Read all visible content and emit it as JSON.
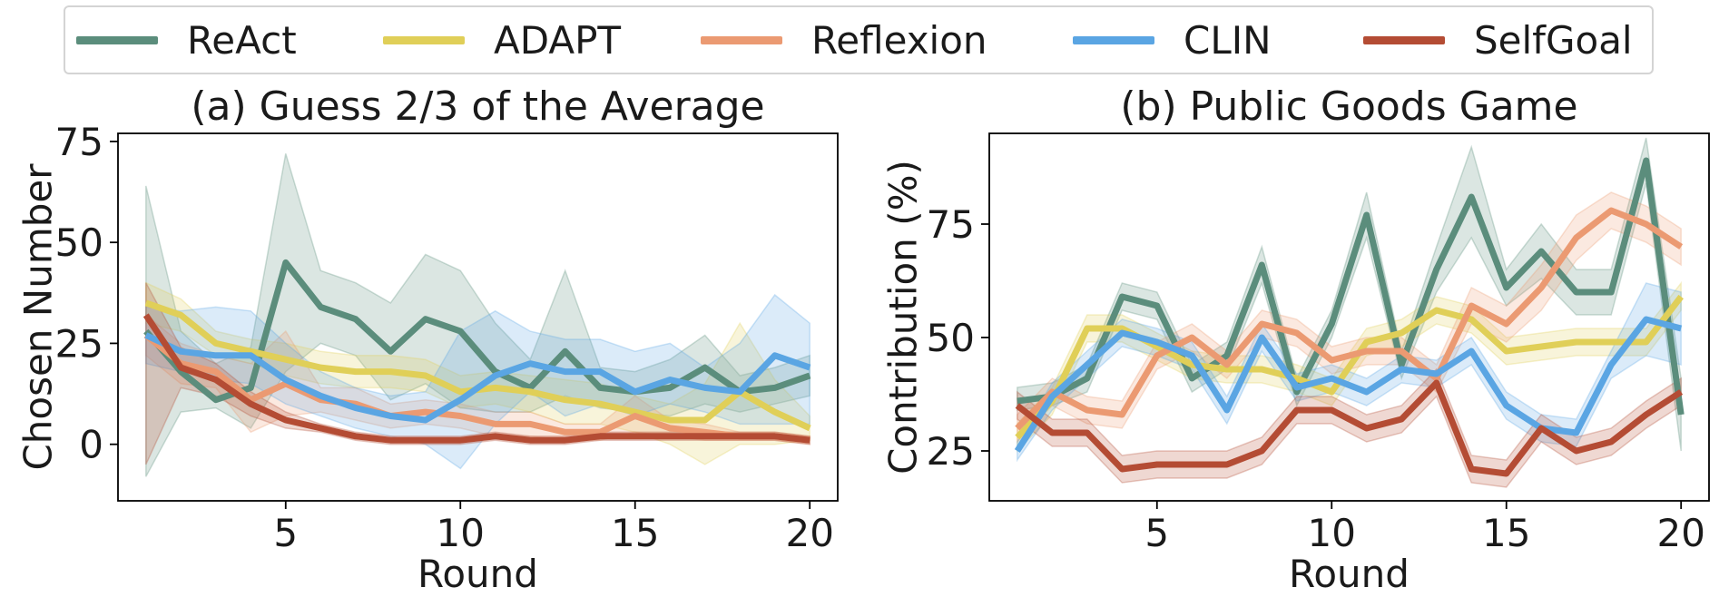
{
  "legend": [
    {
      "name": "ReAct",
      "color": "#5b8d7c"
    },
    {
      "name": "ADAPT",
      "color": "#e0cf58"
    },
    {
      "name": "Reflexion",
      "color": "#eb9a72"
    },
    {
      "name": "CLIN",
      "color": "#5aa5e3"
    },
    {
      "name": "SelfGoal",
      "color": "#b44c34"
    }
  ],
  "chart_data": [
    {
      "type": "line",
      "title": "(a) Guess 2/3 of the Average",
      "xlabel": "Round",
      "ylabel": "Chosen Number",
      "xlim": [
        0.2,
        20.8
      ],
      "ylim": [
        -14,
        77
      ],
      "xticks": [
        5,
        10,
        15,
        20
      ],
      "yticks": [
        0,
        25,
        50,
        75
      ],
      "grid": false,
      "x": [
        1,
        2,
        3,
        4,
        5,
        6,
        7,
        8,
        9,
        10,
        11,
        12,
        13,
        14,
        15,
        16,
        17,
        18,
        19,
        20
      ],
      "series": [
        {
          "name": "ReAct",
          "color": "#5b8d7c",
          "values": [
            28,
            18,
            11,
            14,
            45,
            34,
            31,
            23,
            31,
            28,
            18,
            14,
            23,
            14,
            13,
            14,
            19,
            13,
            14,
            17
          ],
          "lower": [
            -8,
            8,
            9,
            4,
            18,
            25,
            22,
            11,
            15,
            9,
            8,
            8,
            12,
            9,
            8,
            7,
            10,
            8,
            10,
            12
          ],
          "upper": [
            64,
            28,
            20,
            24,
            72,
            43,
            40,
            35,
            47,
            43,
            30,
            21,
            43,
            19,
            18,
            21,
            27,
            17,
            19,
            22
          ]
        },
        {
          "name": "ADAPT",
          "color": "#e0cf58",
          "values": [
            35,
            32,
            25,
            23,
            21,
            19,
            18,
            18,
            17,
            13,
            14,
            13,
            11,
            10,
            8,
            6,
            6,
            13,
            8,
            4
          ],
          "lower": [
            30,
            28,
            22,
            20,
            17,
            15,
            14,
            14,
            13,
            9,
            10,
            8,
            5,
            5,
            3,
            0,
            -5,
            0,
            0,
            1
          ],
          "upper": [
            40,
            36,
            28,
            26,
            25,
            23,
            22,
            22,
            21,
            17,
            18,
            17,
            16,
            15,
            12,
            10,
            15,
            30,
            16,
            7
          ]
        },
        {
          "name": "Reflexion",
          "color": "#eb9a72",
          "values": [
            27,
            20,
            18,
            11,
            15,
            11,
            10,
            7,
            8,
            7,
            5,
            5,
            3,
            3,
            7,
            4,
            3,
            2,
            2,
            1
          ],
          "lower": [
            22,
            15,
            14,
            3,
            7,
            8,
            6,
            4,
            5,
            4,
            2,
            2,
            1,
            1,
            3,
            2,
            1,
            1,
            1,
            0
          ],
          "upper": [
            32,
            25,
            22,
            20,
            28,
            14,
            14,
            10,
            11,
            10,
            8,
            8,
            5,
            5,
            12,
            6,
            5,
            3,
            3,
            2
          ]
        },
        {
          "name": "CLIN",
          "color": "#5aa5e3",
          "values": [
            27,
            23,
            22,
            22,
            16,
            12,
            9,
            7,
            6,
            11,
            17,
            20,
            18,
            18,
            13,
            16,
            14,
            13,
            22,
            19
          ],
          "lower": [
            20,
            18,
            16,
            15,
            10,
            7,
            4,
            2,
            0,
            -6,
            5,
            13,
            7,
            10,
            7,
            10,
            8,
            5,
            5,
            5
          ],
          "upper": [
            34,
            33,
            34,
            33,
            25,
            18,
            14,
            12,
            13,
            28,
            33,
            28,
            26,
            26,
            23,
            25,
            19,
            25,
            37,
            30
          ]
        },
        {
          "name": "SelfGoal",
          "color": "#b44c34",
          "values": [
            32,
            19,
            16,
            10,
            6,
            4,
            2,
            1,
            1,
            1,
            2,
            1,
            1,
            2,
            2,
            2,
            2,
            2,
            2,
            1
          ],
          "lower": [
            -5,
            14,
            12,
            7,
            4,
            3,
            1,
            0,
            0,
            0,
            1,
            0,
            0,
            1,
            1,
            1,
            1,
            1,
            1,
            0
          ],
          "upper": [
            40,
            24,
            20,
            13,
            8,
            5,
            3,
            2,
            2,
            2,
            3,
            2,
            2,
            3,
            3,
            3,
            3,
            3,
            3,
            2
          ]
        }
      ]
    },
    {
      "type": "line",
      "title": "(b) Public Goods Game",
      "xlabel": "Round",
      "ylabel": "Contribution (%)",
      "xlim": [
        0.2,
        20.8
      ],
      "ylim": [
        14,
        95
      ],
      "xticks": [
        5,
        10,
        15,
        20
      ],
      "yticks": [
        25,
        50,
        75
      ],
      "grid": false,
      "x": [
        1,
        2,
        3,
        4,
        5,
        6,
        7,
        8,
        9,
        10,
        11,
        12,
        13,
        14,
        15,
        16,
        17,
        18,
        19,
        20
      ],
      "series": [
        {
          "name": "ReAct",
          "color": "#5b8d7c",
          "values": [
            36,
            37,
            41,
            59,
            57,
            41,
            46,
            66,
            38,
            53,
            77,
            44,
            65,
            81,
            61,
            69,
            60,
            60,
            89,
            33
          ],
          "lower": [
            34,
            35,
            38,
            56,
            54,
            38,
            43,
            62,
            35,
            50,
            72,
            41,
            60,
            72,
            57,
            63,
            55,
            55,
            84,
            25
          ],
          "upper": [
            39,
            40,
            44,
            62,
            60,
            44,
            49,
            70,
            41,
            56,
            82,
            47,
            70,
            92,
            65,
            75,
            65,
            65,
            94,
            41
          ]
        },
        {
          "name": "ADAPT",
          "color": "#e0cf58",
          "values": [
            28,
            36,
            52,
            52,
            48,
            44,
            43,
            43,
            41,
            38,
            49,
            51,
            56,
            54,
            47,
            48,
            49,
            49,
            49,
            59
          ],
          "lower": [
            25,
            33,
            49,
            49,
            45,
            41,
            40,
            40,
            38,
            35,
            46,
            48,
            53,
            51,
            44,
            45,
            46,
            46,
            46,
            56
          ],
          "upper": [
            31,
            39,
            55,
            55,
            51,
            47,
            46,
            46,
            44,
            41,
            52,
            54,
            59,
            57,
            50,
            51,
            52,
            52,
            52,
            62
          ]
        },
        {
          "name": "Reflexion",
          "color": "#eb9a72",
          "values": [
            30,
            38,
            34,
            33,
            46,
            50,
            44,
            53,
            51,
            45,
            47,
            47,
            41,
            57,
            53,
            61,
            72,
            78,
            75,
            70
          ],
          "lower": [
            27,
            35,
            31,
            30,
            43,
            47,
            41,
            50,
            48,
            42,
            44,
            44,
            38,
            53,
            49,
            56,
            67,
            74,
            71,
            66
          ],
          "upper": [
            33,
            41,
            37,
            36,
            49,
            53,
            47,
            56,
            54,
            48,
            50,
            50,
            44,
            61,
            57,
            66,
            77,
            82,
            79,
            74
          ]
        },
        {
          "name": "CLIN",
          "color": "#5aa5e3",
          "values": [
            25,
            37,
            44,
            51,
            49,
            46,
            34,
            50,
            39,
            41,
            38,
            43,
            42,
            47,
            35,
            30,
            29,
            44,
            54,
            52
          ],
          "lower": [
            23,
            34,
            41,
            48,
            46,
            43,
            31,
            47,
            36,
            38,
            35,
            40,
            39,
            44,
            32,
            27,
            26,
            41,
            46,
            44
          ],
          "upper": [
            27,
            40,
            47,
            54,
            52,
            49,
            37,
            53,
            42,
            44,
            41,
            46,
            45,
            50,
            38,
            33,
            32,
            47,
            62,
            60
          ]
        },
        {
          "name": "SelfGoal",
          "color": "#b44c34",
          "values": [
            35,
            29,
            29,
            21,
            22,
            22,
            22,
            25,
            34,
            34,
            30,
            32,
            40,
            21,
            20,
            30,
            25,
            27,
            33,
            38
          ],
          "lower": [
            32,
            26,
            26,
            18,
            19,
            19,
            19,
            22,
            31,
            31,
            27,
            29,
            37,
            18,
            17,
            27,
            22,
            24,
            30,
            35
          ],
          "upper": [
            38,
            32,
            32,
            24,
            25,
            25,
            25,
            28,
            37,
            37,
            33,
            35,
            43,
            24,
            23,
            33,
            28,
            30,
            36,
            41
          ]
        }
      ]
    }
  ]
}
